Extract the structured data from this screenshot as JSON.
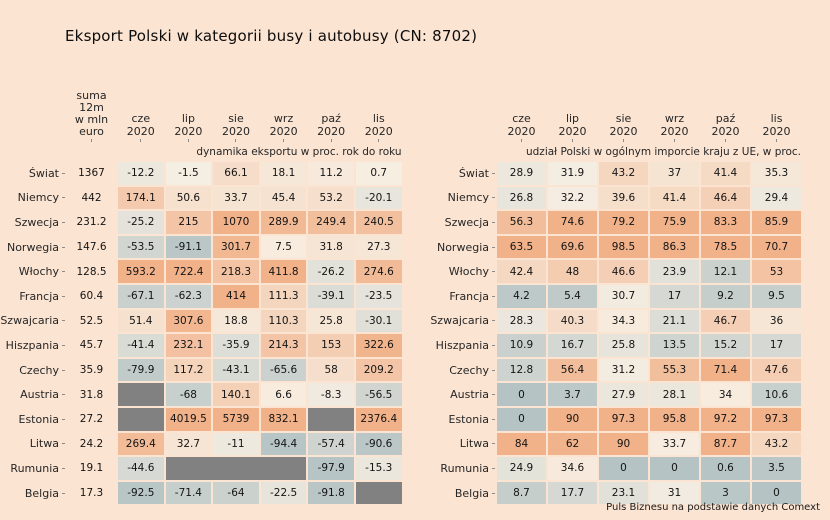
{
  "source_note": "Puls Biznesu na podstawie danych Comext",
  "colors": {
    "background": "#fbe4d2",
    "neutral": "#f7efe3",
    "positive": "#f1b189",
    "negative": "#b5c3c4",
    "missing": "#818181",
    "text": "#141414"
  },
  "chart_data": {
    "type": "heatmap",
    "title": "Eksport Polski w kategorii busy i autobusy (CN: 8702)",
    "months": [
      {
        "abbr": "cze",
        "year": "2020"
      },
      {
        "abbr": "lip",
        "year": "2020"
      },
      {
        "abbr": "sie",
        "year": "2020"
      },
      {
        "abbr": "wrz",
        "year": "2020"
      },
      {
        "abbr": "paź",
        "year": "2020"
      },
      {
        "abbr": "lis",
        "year": "2020"
      }
    ],
    "left_table": {
      "sum_header_lines": [
        "suma",
        "12m",
        "w mln",
        "euro"
      ],
      "subtitle": "dynamika eksportu w proc. rok do roku",
      "rows": [
        {
          "country": "Świat",
          "sum": 1367,
          "values": [
            -12.2,
            -1.5,
            66.1,
            18.1,
            11.2,
            0.7
          ]
        },
        {
          "country": "Niemcy",
          "sum": 442,
          "values": [
            174.1,
            50.6,
            33.7,
            45.4,
            53.2,
            -20.1
          ]
        },
        {
          "country": "Szwecja",
          "sum": 231.2,
          "values": [
            -25.2,
            215,
            1070,
            289.9,
            249.4,
            240.5
          ]
        },
        {
          "country": "Norwegia",
          "sum": 147.6,
          "values": [
            -53.5,
            -91.1,
            301.7,
            7.5,
            31.8,
            27.3
          ]
        },
        {
          "country": "Włochy",
          "sum": 128.5,
          "values": [
            593.2,
            722.4,
            218.3,
            411.8,
            -26.2,
            274.6
          ]
        },
        {
          "country": "Francja",
          "sum": 60.4,
          "values": [
            -67.1,
            -62.3,
            414,
            111.3,
            -39.1,
            -23.5
          ]
        },
        {
          "country": "Szwajcaria",
          "sum": 52.5,
          "values": [
            51.4,
            307.6,
            18.8,
            110.3,
            25.8,
            -30.1
          ]
        },
        {
          "country": "Hiszpania",
          "sum": 45.7,
          "values": [
            -41.4,
            232.1,
            -35.9,
            214.3,
            153,
            322.6
          ]
        },
        {
          "country": "Czechy",
          "sum": 35.9,
          "values": [
            -79.9,
            117.2,
            -43.1,
            -65.6,
            58,
            209.2
          ]
        },
        {
          "country": "Austria",
          "sum": 31.8,
          "values": [
            null,
            -68,
            140.1,
            6.6,
            -8.3,
            -56.5
          ]
        },
        {
          "country": "Estonia",
          "sum": 27.2,
          "values": [
            null,
            4019.5,
            5739,
            832.1,
            null,
            2376.4
          ]
        },
        {
          "country": "Litwa",
          "sum": 24.2,
          "values": [
            269.4,
            32.7,
            -11,
            -94.4,
            -57.4,
            -90.6
          ]
        },
        {
          "country": "Rumunia",
          "sum": 19.1,
          "values": [
            -44.6,
            null,
            null,
            null,
            -97.9,
            -15.3
          ]
        },
        {
          "country": "Belgia",
          "sum": 17.3,
          "values": [
            -92.5,
            -71.4,
            -64,
            -22.5,
            -91.8,
            null
          ]
        }
      ]
    },
    "right_table": {
      "subtitle": "udział Polski w ogólnym imporcie kraju z UE, w proc.",
      "rows": [
        {
          "country": "Świat",
          "values": [
            28.9,
            31.9,
            43.2,
            37,
            41.4,
            35.3
          ]
        },
        {
          "country": "Niemcy",
          "values": [
            26.8,
            32.2,
            39.6,
            41.4,
            46.4,
            29.4
          ]
        },
        {
          "country": "Szwecja",
          "values": [
            56.3,
            74.6,
            79.2,
            75.9,
            83.3,
            85.9
          ]
        },
        {
          "country": "Norwegia",
          "values": [
            63.5,
            69.6,
            98.5,
            86.3,
            78.5,
            70.7
          ]
        },
        {
          "country": "Włochy",
          "values": [
            42.4,
            48,
            46.6,
            23.9,
            12.1,
            53
          ]
        },
        {
          "country": "Francja",
          "values": [
            4.2,
            5.4,
            30.7,
            17,
            9.2,
            9.5
          ]
        },
        {
          "country": "Szwajcaria",
          "values": [
            28.3,
            40.3,
            34.3,
            21.1,
            46.7,
            36
          ]
        },
        {
          "country": "Hiszpania",
          "values": [
            10.9,
            16.7,
            25.8,
            13.5,
            15.2,
            17
          ]
        },
        {
          "country": "Czechy",
          "values": [
            12.8,
            56.4,
            31.2,
            55.3,
            71.4,
            47.6
          ]
        },
        {
          "country": "Austria",
          "values": [
            0,
            3.7,
            27.9,
            28.1,
            34,
            10.6
          ]
        },
        {
          "country": "Estonia",
          "values": [
            0,
            90,
            97.3,
            95.8,
            97.2,
            97.3
          ]
        },
        {
          "country": "Litwa",
          "values": [
            84,
            62,
            90,
            33.7,
            87.7,
            43.2
          ]
        },
        {
          "country": "Rumunia",
          "values": [
            24.9,
            34.6,
            0,
            0,
            0.6,
            3.5
          ]
        },
        {
          "country": "Belgia",
          "values": [
            8.7,
            17.7,
            23.1,
            31,
            3,
            0
          ]
        }
      ]
    }
  }
}
